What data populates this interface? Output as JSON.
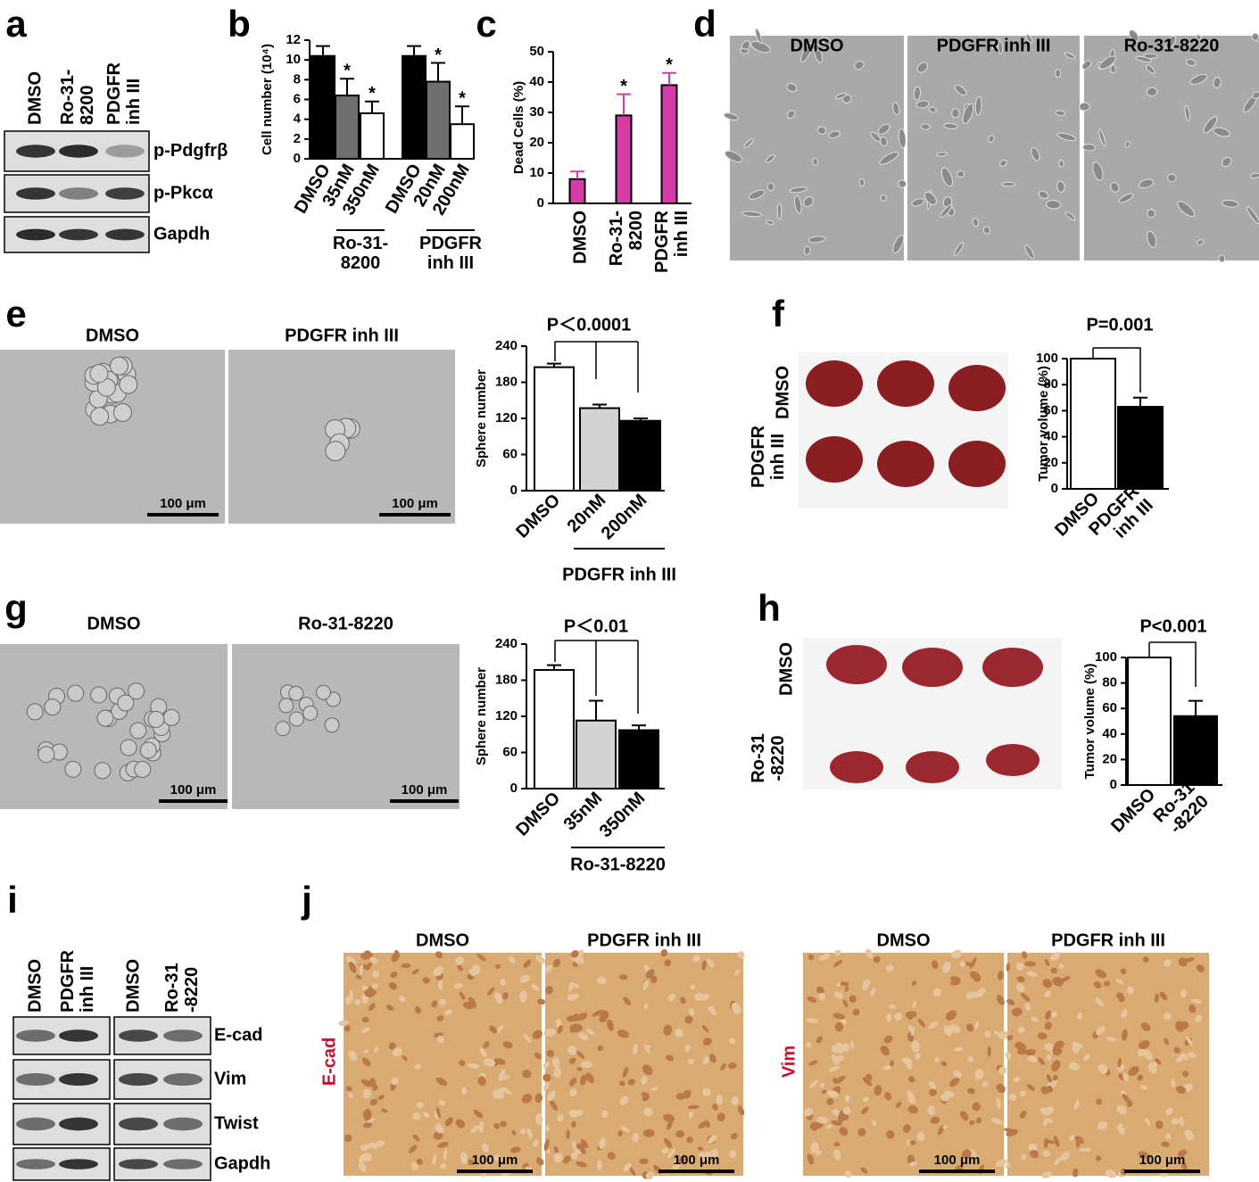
{
  "panels": {
    "a": {
      "letter": "a",
      "lanes": [
        "DMSO",
        "Ro-31-\n8200",
        "PDGFR\ninh III"
      ],
      "bands": [
        "p-Pdgfrβ",
        "p-Pkcα",
        "Gapdh"
      ]
    },
    "b": {
      "letter": "b",
      "chart": {
        "type": "bar",
        "ylabel": "Cell number (10⁴)",
        "categories": [
          "DMSO",
          "35nM",
          "350nM",
          "DMSO",
          "20nM",
          "200nM"
        ],
        "values": [
          10.4,
          6.4,
          4.6,
          10.4,
          7.8,
          3.5
        ],
        "errors": [
          1.0,
          1.7,
          1.2,
          1.0,
          1.9,
          1.8
        ],
        "colors": [
          "#000000",
          "#6e6e6e",
          "#ffffff",
          "#000000",
          "#6e6e6e",
          "#ffffff"
        ],
        "significance": [
          null,
          "*",
          "*",
          null,
          "*",
          "*"
        ],
        "groups": [
          "Ro-31-\n8200",
          "PDGFR\ninh III"
        ],
        "ylim": [
          0,
          12
        ],
        "yticks": [
          0,
          2,
          4,
          6,
          8,
          10,
          12
        ]
      }
    },
    "c": {
      "letter": "c",
      "chart": {
        "type": "bar",
        "ylabel": "Dead Cells (%)",
        "categories": [
          "DMSO",
          "Ro-31-\n8200",
          "PDGFR\ninh III"
        ],
        "values": [
          8,
          29,
          39
        ],
        "errors": [
          2.5,
          7,
          4
        ],
        "colors": [
          "#d63ca8",
          "#d63ca8",
          "#d63ca8"
        ],
        "significance": [
          null,
          "*",
          "*"
        ],
        "ylim": [
          0,
          50
        ],
        "yticks": [
          0,
          10,
          20,
          30,
          40,
          50
        ]
      }
    },
    "d": {
      "letter": "d",
      "images": [
        "DMSO",
        "PDGFR inh III",
        "Ro-31-8220"
      ]
    },
    "e": {
      "letter": "e",
      "images": [
        "DMSO",
        "PDGFR inh III"
      ],
      "scale_bars": [
        "100 μm",
        "100 μm"
      ],
      "chart": {
        "type": "bar",
        "ylabel": "Sphere number",
        "p_value": "P＜0.0001",
        "categories": [
          "DMSO",
          "20nM",
          "200nM"
        ],
        "values": [
          205,
          137,
          116
        ],
        "errors": [
          6,
          6,
          4
        ],
        "colors": [
          "#ffffff",
          "#d3d3d3",
          "#000000"
        ],
        "groups": [
          "PDGFR inh III"
        ],
        "ylim": [
          0,
          240
        ],
        "yticks": [
          0,
          60,
          120,
          180,
          240
        ]
      }
    },
    "f": {
      "letter": "f",
      "rows": [
        "DMSO",
        "PDGFR\ninh III"
      ],
      "chart": {
        "type": "bar",
        "ylabel": "Tumor volume (%)",
        "p_value": "P=0.001",
        "categories": [
          "DMSO",
          "PDGFR\ninh III"
        ],
        "values": [
          100,
          63
        ],
        "errors": [
          null,
          7
        ],
        "colors": [
          "#ffffff",
          "#000000"
        ],
        "ylim": [
          0,
          100
        ],
        "yticks": [
          0,
          20,
          40,
          60,
          80,
          100
        ]
      }
    },
    "g": {
      "letter": "g",
      "images": [
        "DMSO",
        "Ro-31-8220"
      ],
      "scale_bars": [
        "100 μm",
        "100 μm"
      ],
      "chart": {
        "type": "bar",
        "ylabel": "Sphere number",
        "p_value": "P＜0.01",
        "categories": [
          "DMSO",
          "35nM",
          "350nM"
        ],
        "values": [
          197,
          113,
          97
        ],
        "errors": [
          8,
          33,
          8
        ],
        "colors": [
          "#ffffff",
          "#d3d3d3",
          "#000000"
        ],
        "groups": [
          "Ro-31-8220"
        ],
        "ylim": [
          0,
          240
        ],
        "yticks": [
          0,
          60,
          120,
          180,
          240
        ]
      }
    },
    "h": {
      "letter": "h",
      "rows": [
        "DMSO",
        "Ro-31\n-8220"
      ],
      "chart": {
        "type": "bar",
        "ylabel": "Tumor volume (%)",
        "p_value": "P<0.001",
        "categories": [
          "DMSO",
          "Ro-31\n-8220"
        ],
        "values": [
          100,
          54
        ],
        "errors": [
          null,
          12
        ],
        "colors": [
          "#ffffff",
          "#000000"
        ],
        "ylim": [
          0,
          100
        ],
        "yticks": [
          0,
          20,
          40,
          60,
          80,
          100
        ]
      }
    },
    "i": {
      "letter": "i",
      "lanes": [
        "DMSO",
        "PDGFR\ninh III",
        "DMSO",
        "Ro-31\n-8220"
      ],
      "bands": [
        "E-cad",
        "Vim",
        "Twist",
        "Gapdh"
      ]
    },
    "j": {
      "letter": "j",
      "images": [
        "DMSO",
        "PDGFR inh III",
        "DMSO",
        "PDGFR inh III"
      ],
      "rows": [
        "E-cad",
        "Vim"
      ],
      "scale_bars": [
        "100 μm",
        "100 μm",
        "100 μm",
        "100 μm"
      ]
    }
  }
}
